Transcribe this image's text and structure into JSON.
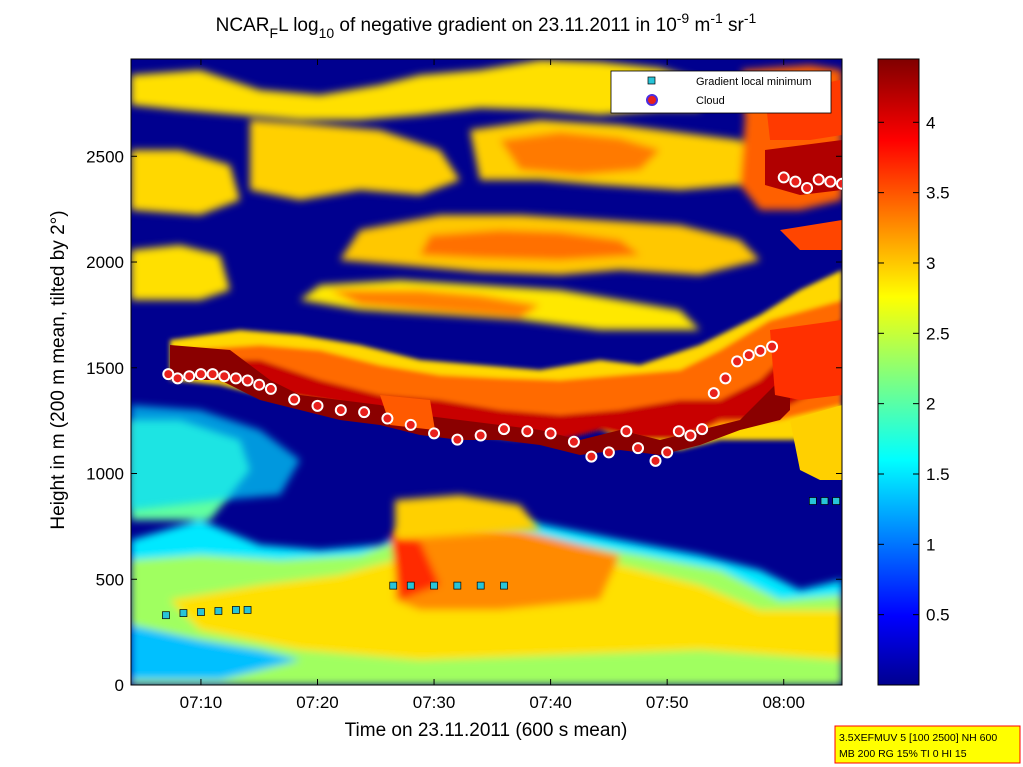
{
  "chart_data": {
    "type": "heatmap",
    "title": {
      "base": "NCAR",
      "sub1": "F",
      "mid": "L log",
      "sub2": "10",
      "rest": " of negative gradient on 23.11.2011 in 10",
      "sup1": "-9",
      "unit1": " m",
      "sup2": "-1",
      "unit2": " sr",
      "sup3": "-1"
    },
    "xlabel": "Time on 23.11.2011 (600 s mean)",
    "ylabel": "Height in m (200 m mean, tilted by 2°)",
    "xlim_minutes": [
      4,
      65
    ],
    "ylim": [
      0,
      2960
    ],
    "xticks": [
      {
        "minute": 10,
        "label": "07:10"
      },
      {
        "minute": 20,
        "label": "07:20"
      },
      {
        "minute": 30,
        "label": "07:30"
      },
      {
        "minute": 40,
        "label": "07:40"
      },
      {
        "minute": 50,
        "label": "07:50"
      },
      {
        "minute": 60,
        "label": "08:00"
      }
    ],
    "yticks": [
      0,
      500,
      1000,
      1500,
      2000,
      2500
    ],
    "colorbar": {
      "range": [
        0,
        4.45
      ],
      "ticks": [
        "0.5",
        "1",
        "1.5",
        "2",
        "2.5",
        "3",
        "3.5",
        "4"
      ],
      "colormap": "jet"
    },
    "legend": {
      "placement": "top-right",
      "entries": [
        {
          "label": "Gradient local minimum",
          "marker": "square",
          "color": "#27c4d8"
        },
        {
          "label": "Cloud",
          "marker": "circle",
          "color": "#e8201c"
        }
      ]
    },
    "series": [
      {
        "name": "Cloud",
        "x": [
          7.2,
          8.0,
          9.0,
          10.0,
          11.0,
          12.0,
          13.0,
          14.0,
          15.0,
          16.0,
          18.0,
          20.0,
          22.0,
          24.0,
          26.0,
          28.0,
          30.0,
          32.0,
          34.0,
          36.0,
          38.0,
          40.0,
          42.0,
          43.5,
          45.0,
          46.5,
          47.5,
          49.0,
          50.0,
          51.0,
          52.0,
          53.0,
          54.0,
          55.0,
          56.0,
          57.0,
          58.0,
          59.0,
          60.0,
          61.0,
          62.0,
          63.0,
          64.0,
          65.0
        ],
        "y": [
          1470,
          1450,
          1460,
          1470,
          1470,
          1460,
          1450,
          1440,
          1420,
          1400,
          1350,
          1320,
          1300,
          1290,
          1260,
          1230,
          1190,
          1160,
          1180,
          1210,
          1200,
          1190,
          1150,
          1080,
          1100,
          1200,
          1120,
          1060,
          1100,
          1200,
          1180,
          1210,
          1380,
          1450,
          1530,
          1560,
          1580,
          1600,
          2400,
          2380,
          2350,
          2390,
          2380,
          2370
        ]
      },
      {
        "name": "Gradient local minimum",
        "x": [
          26.5,
          28.0,
          30.0,
          32.0,
          34.0,
          36.0
        ],
        "y": [
          470,
          470,
          470,
          470,
          470,
          470
        ]
      },
      {
        "name": "Gradient local minimum",
        "x": [
          7.0,
          8.5,
          10.0,
          11.5,
          13.0,
          14.0
        ],
        "y": [
          330,
          340,
          345,
          350,
          355,
          355
        ]
      },
      {
        "name": "Gradient local minimum",
        "x": [
          62.5,
          63.5,
          64.5
        ],
        "y": [
          870,
          870,
          870
        ]
      }
    ]
  },
  "annotation": {
    "line1": "3.5XEFMUV 5 [100 2500] NH 600",
    "line2": "MB 200 RG 15% TI 0 HI 15"
  }
}
